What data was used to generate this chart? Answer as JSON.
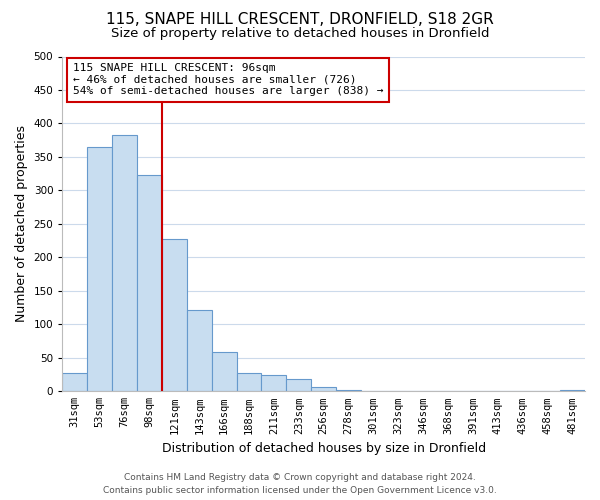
{
  "title": "115, SNAPE HILL CRESCENT, DRONFIELD, S18 2GR",
  "subtitle": "Size of property relative to detached houses in Dronfield",
  "xlabel": "Distribution of detached houses by size in Dronfield",
  "ylabel": "Number of detached properties",
  "bar_labels": [
    "31sqm",
    "53sqm",
    "76sqm",
    "98sqm",
    "121sqm",
    "143sqm",
    "166sqm",
    "188sqm",
    "211sqm",
    "233sqm",
    "256sqm",
    "278sqm",
    "301sqm",
    "323sqm",
    "346sqm",
    "368sqm",
    "391sqm",
    "413sqm",
    "436sqm",
    "458sqm",
    "481sqm"
  ],
  "bar_values": [
    28,
    365,
    383,
    323,
    227,
    121,
    58,
    28,
    24,
    18,
    7,
    2,
    0,
    0,
    0,
    0,
    0,
    0,
    0,
    0,
    2
  ],
  "bar_color": "#c8ddf0",
  "bar_edge_color": "#6699cc",
  "vline_color": "#cc0000",
  "ylim": [
    0,
    500
  ],
  "yticks": [
    0,
    50,
    100,
    150,
    200,
    250,
    300,
    350,
    400,
    450,
    500
  ],
  "annotation_title": "115 SNAPE HILL CRESCENT: 96sqm",
  "annotation_line1": "← 46% of detached houses are smaller (726)",
  "annotation_line2": "54% of semi-detached houses are larger (838) →",
  "annotation_box_color": "#ffffff",
  "annotation_box_edge": "#cc0000",
  "footer1": "Contains HM Land Registry data © Crown copyright and database right 2024.",
  "footer2": "Contains public sector information licensed under the Open Government Licence v3.0.",
  "bg_color": "#ffffff",
  "grid_color": "#ccdaeb",
  "title_fontsize": 11,
  "subtitle_fontsize": 9.5,
  "axis_label_fontsize": 9,
  "tick_fontsize": 7.5,
  "annotation_fontsize": 8,
  "footer_fontsize": 6.5
}
